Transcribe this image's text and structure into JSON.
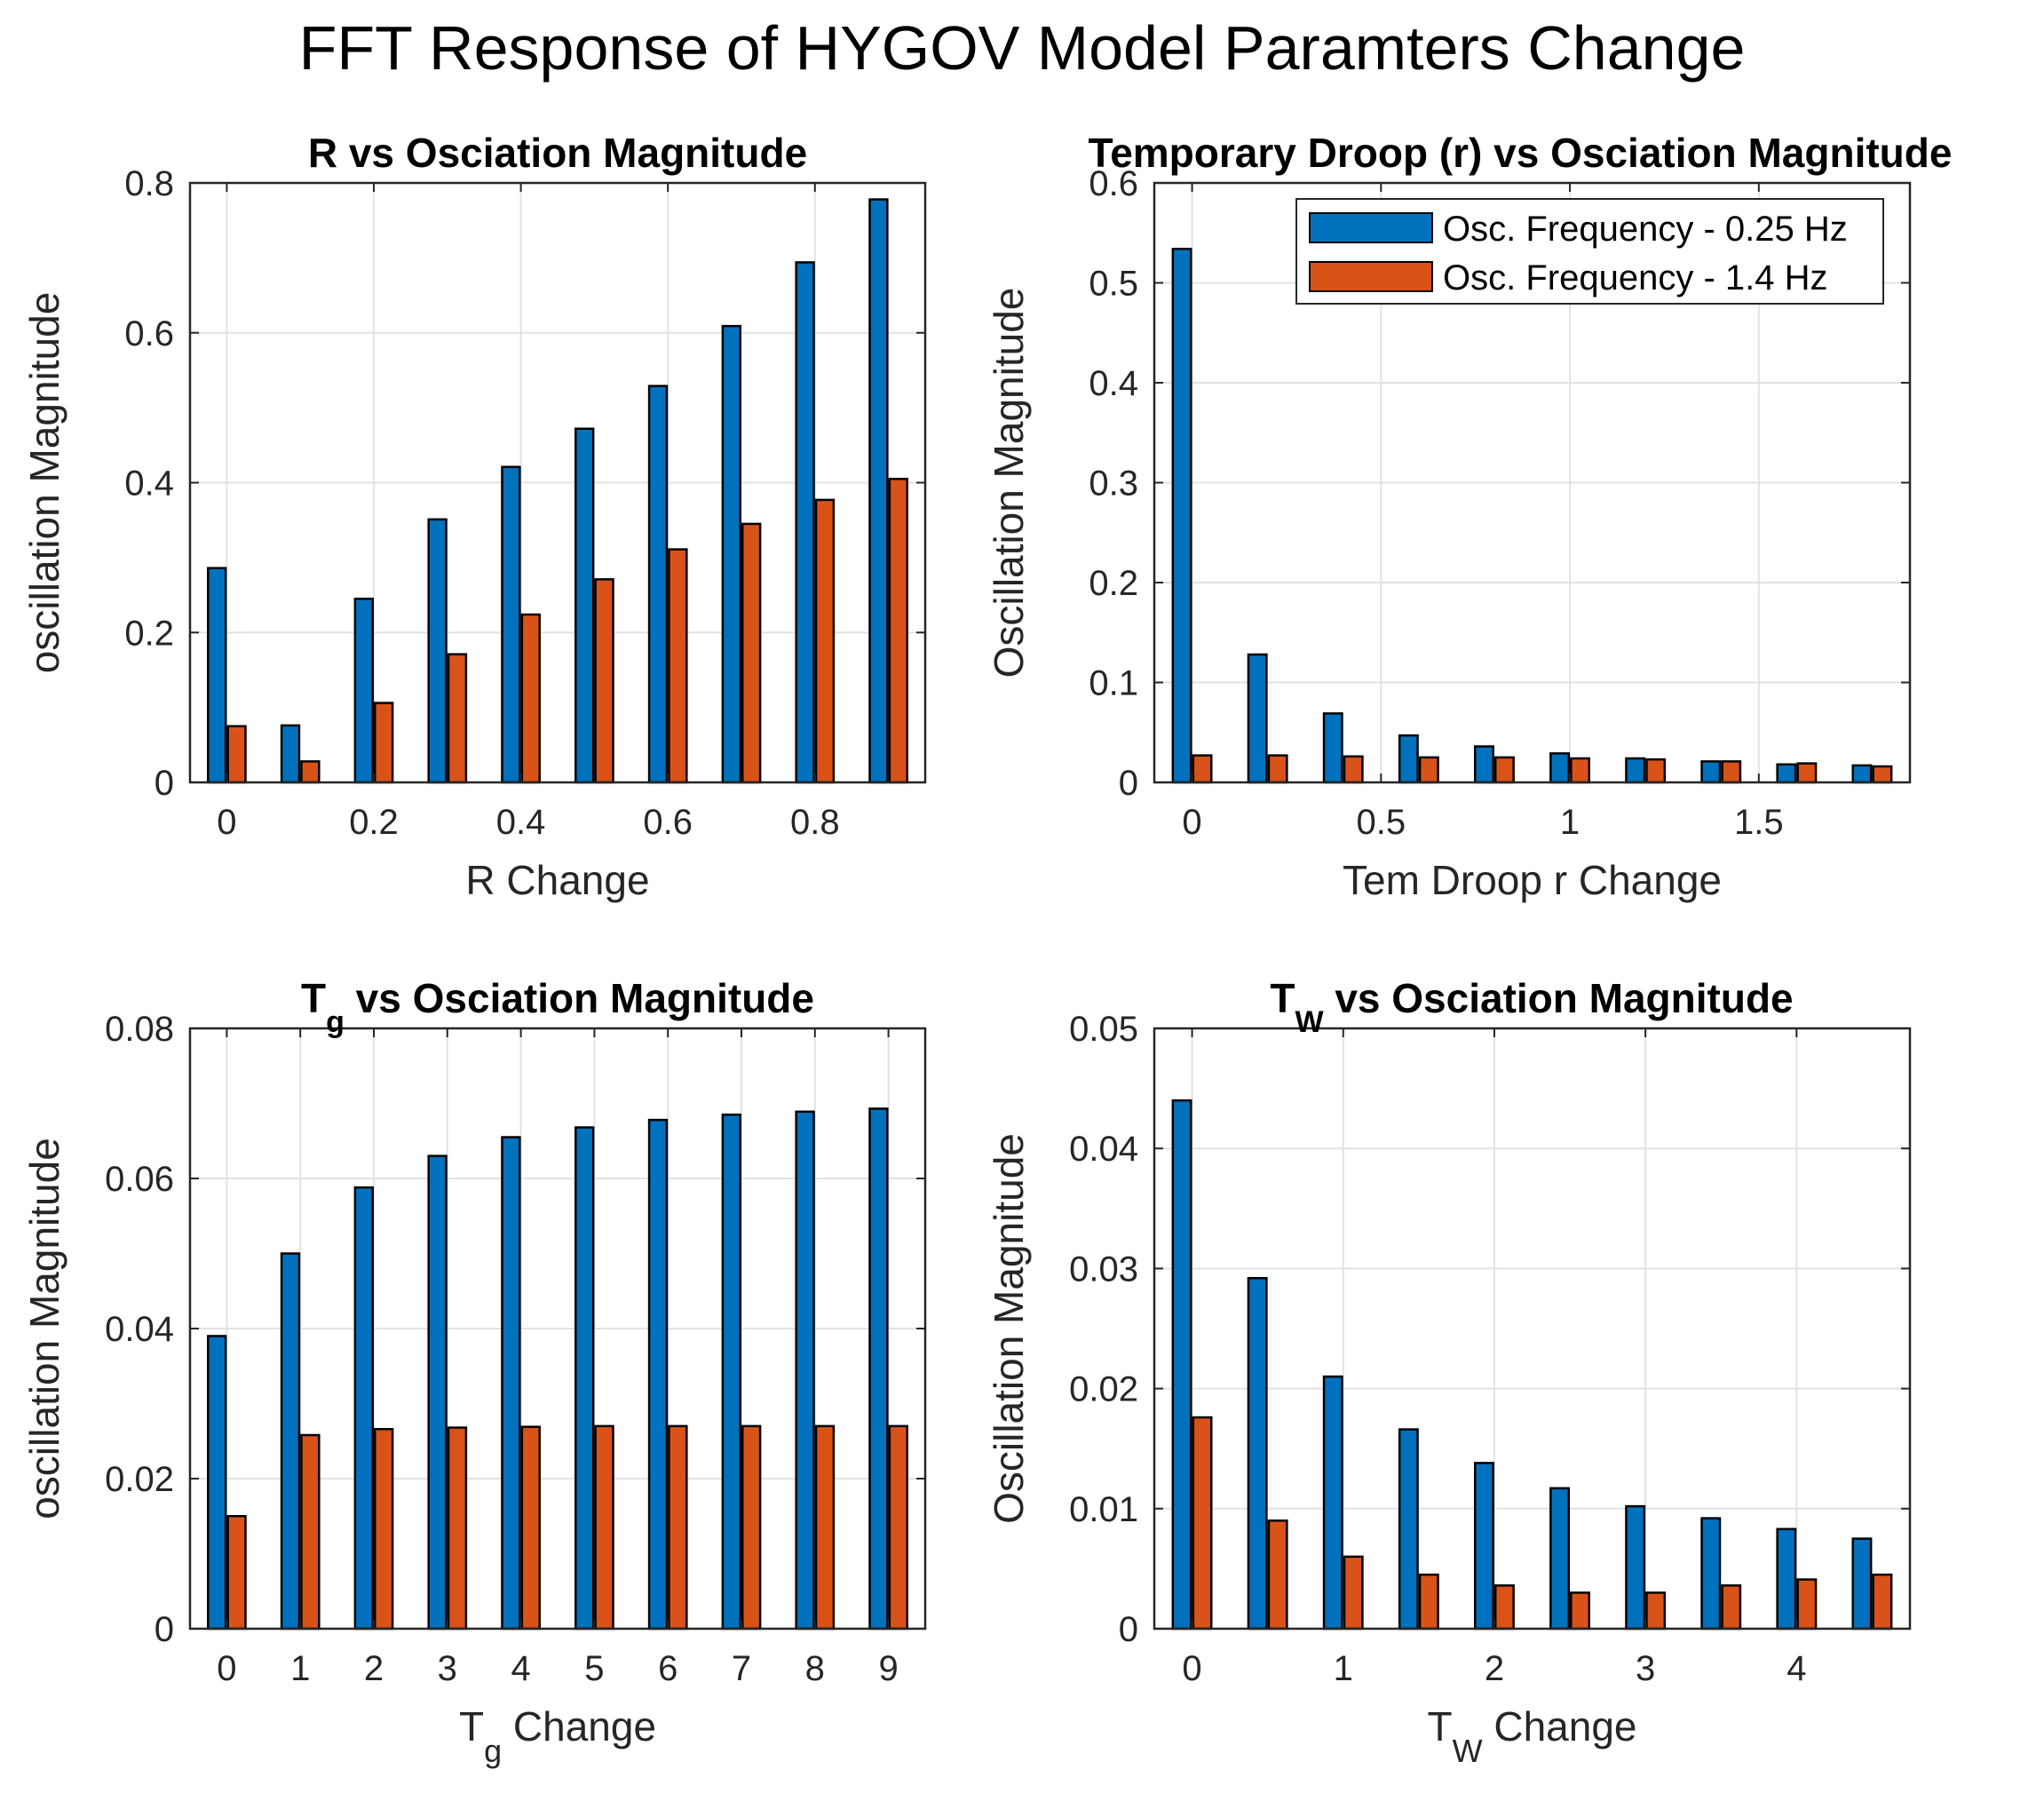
{
  "figure_title": "FFT Response of HYGOV Model Paramters Change",
  "colors": {
    "series_1": "#0072BD",
    "series_2": "#D95319"
  },
  "legend": {
    "entries": [
      "Osc. Frequency - 0.25 Hz",
      "Osc. Frequency - 1.4 Hz"
    ],
    "placement": "top-right of Temporary Droop (r) subplot"
  },
  "chart_data": [
    {
      "type": "bar",
      "title": "R vs Osciation Magnitude",
      "xlabel": "R Change",
      "ylabel": "oscillation Magnitude",
      "x": [
        0,
        0.1,
        0.2,
        0.3,
        0.4,
        0.5,
        0.6,
        0.7,
        0.8,
        0.9
      ],
      "xlim": [
        -0.05,
        0.95
      ],
      "ylim": [
        0,
        0.8
      ],
      "xticks": [
        0,
        0.2,
        0.4,
        0.6,
        0.8
      ],
      "xtick_labels": [
        "0",
        "0.2",
        "0.4",
        "0.6",
        "0.8"
      ],
      "yticks": [
        0,
        0.2,
        0.4,
        0.6,
        0.8
      ],
      "ytick_labels": [
        "0",
        "0.2",
        "0.4",
        "0.6",
        "0.8"
      ],
      "grid": true,
      "series": [
        {
          "name": "Osc. Frequency - 0.25 Hz",
          "values": [
            0.286,
            0.076,
            0.245,
            0.351,
            0.421,
            0.472,
            0.529,
            0.609,
            0.694,
            0.778
          ]
        },
        {
          "name": "Osc. Frequency - 1.4 Hz",
          "values": [
            0.075,
            0.028,
            0.106,
            0.171,
            0.224,
            0.271,
            0.311,
            0.345,
            0.377,
            0.405
          ]
        }
      ]
    },
    {
      "type": "bar",
      "title": "Temporary Droop (r) vs Osciation Magnitude",
      "xlabel": "Tem Droop r Change",
      "ylabel": "Oscillation Magnitude",
      "x": [
        0,
        0.2,
        0.4,
        0.6,
        0.8,
        1.0,
        1.2,
        1.4,
        1.6,
        1.8
      ],
      "xlim": [
        -0.1,
        1.9
      ],
      "ylim": [
        0,
        0.6
      ],
      "xticks": [
        0,
        0.5,
        1,
        1.5
      ],
      "xtick_labels": [
        "0",
        "0.5",
        "1",
        "1.5"
      ],
      "yticks": [
        0,
        0.1,
        0.2,
        0.3,
        0.4,
        0.5,
        0.6
      ],
      "ytick_labels": [
        "0",
        "0.1",
        "0.2",
        "0.3",
        "0.4",
        "0.5",
        "0.6"
      ],
      "grid": true,
      "series": [
        {
          "name": "Osc. Frequency - 0.25 Hz",
          "values": [
            0.534,
            0.128,
            0.069,
            0.047,
            0.036,
            0.029,
            0.024,
            0.021,
            0.018,
            0.017
          ]
        },
        {
          "name": "Osc. Frequency - 1.4 Hz",
          "values": [
            0.027,
            0.027,
            0.026,
            0.025,
            0.025,
            0.024,
            0.023,
            0.021,
            0.019,
            0.016
          ]
        }
      ]
    },
    {
      "type": "bar",
      "title_main": "T",
      "title_sub": "g",
      "title_rest": " vs Osciation Magnitude",
      "xlabel_main": "T",
      "xlabel_sub": "g",
      "xlabel_rest": " Change",
      "ylabel": "oscillation Magnitude",
      "x": [
        0,
        1,
        2,
        3,
        4,
        5,
        6,
        7,
        8,
        9
      ],
      "xlim": [
        -0.5,
        9.5
      ],
      "ylim": [
        0,
        0.08
      ],
      "xticks": [
        0,
        1,
        2,
        3,
        4,
        5,
        6,
        7,
        8,
        9
      ],
      "xtick_labels": [
        "0",
        "1",
        "2",
        "3",
        "4",
        "5",
        "6",
        "7",
        "8",
        "9"
      ],
      "yticks": [
        0,
        0.02,
        0.04,
        0.06,
        0.08
      ],
      "ytick_labels": [
        "0",
        "0.02",
        "0.04",
        "0.06",
        "0.08"
      ],
      "grid": true,
      "series": [
        {
          "name": "Osc. Frequency - 0.25 Hz",
          "values": [
            0.039,
            0.05,
            0.0588,
            0.063,
            0.0655,
            0.0668,
            0.0678,
            0.0685,
            0.0689,
            0.0693
          ]
        },
        {
          "name": "Osc. Frequency - 1.4 Hz",
          "values": [
            0.015,
            0.0258,
            0.0266,
            0.0268,
            0.0269,
            0.027,
            0.027,
            0.027,
            0.027,
            0.027
          ]
        }
      ]
    },
    {
      "type": "bar",
      "title_main": "T",
      "title_sub": "W",
      "title_rest": " vs Osciation Magnitude",
      "xlabel_main": "T",
      "xlabel_sub": "W",
      "xlabel_rest": " Change",
      "ylabel": "Oscillation Magnitude",
      "x": [
        0,
        0.5,
        1.0,
        1.5,
        2.0,
        2.5,
        3.0,
        3.5,
        4.0,
        4.5
      ],
      "xlim": [
        -0.25,
        4.75
      ],
      "ylim": [
        0,
        0.05
      ],
      "xticks": [
        0,
        1,
        2,
        3,
        4
      ],
      "xtick_labels": [
        "0",
        "1",
        "2",
        "3",
        "4"
      ],
      "yticks": [
        0,
        0.01,
        0.02,
        0.03,
        0.04,
        0.05
      ],
      "ytick_labels": [
        "0",
        "0.01",
        "0.02",
        "0.03",
        "0.04",
        "0.05"
      ],
      "grid": true,
      "series": [
        {
          "name": "Osc. Frequency - 0.25 Hz",
          "values": [
            0.044,
            0.0292,
            0.021,
            0.0166,
            0.0138,
            0.0117,
            0.0102,
            0.0092,
            0.0083,
            0.0075
          ]
        },
        {
          "name": "Osc. Frequency - 1.4 Hz",
          "values": [
            0.0176,
            0.009,
            0.006,
            0.0045,
            0.0036,
            0.003,
            0.003,
            0.0036,
            0.0041,
            0.0045
          ]
        }
      ]
    }
  ]
}
